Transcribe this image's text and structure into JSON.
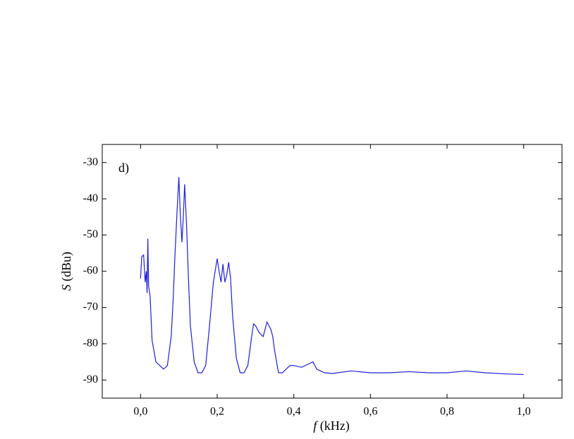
{
  "chart_data": {
    "type": "line",
    "annotation": "d)",
    "xlabel_symbol": "f",
    "xlabel_unit": " (kHz)",
    "ylabel_symbol": "S",
    "ylabel_unit": " (dBu)",
    "xlim": [
      -0.1,
      1.1
    ],
    "xticks": [
      {
        "value": 0,
        "label": "0,0"
      },
      {
        "value": 0.2,
        "label": "0,2"
      },
      {
        "value": 0.4,
        "label": "0,4"
      },
      {
        "value": 0.6,
        "label": "0,6"
      },
      {
        "value": 0.8,
        "label": "0,8"
      },
      {
        "value": 1.0,
        "label": "1,0"
      }
    ],
    "ylim": [
      -95,
      -25
    ],
    "yticks": [
      -90,
      -80,
      -70,
      -60,
      -50,
      -40,
      -30
    ],
    "series": [
      {
        "color": "#1f1fd6",
        "x": [
          0.0,
          0.003,
          0.008,
          0.012,
          0.015,
          0.017,
          0.019,
          0.021,
          0.025,
          0.03,
          0.035,
          0.04,
          0.05,
          0.06,
          0.07,
          0.08,
          0.085,
          0.09,
          0.095,
          0.1,
          0.104,
          0.108,
          0.112,
          0.115,
          0.12,
          0.125,
          0.13,
          0.14,
          0.15,
          0.16,
          0.17,
          0.18,
          0.19,
          0.2,
          0.205,
          0.21,
          0.215,
          0.22,
          0.225,
          0.23,
          0.235,
          0.24,
          0.25,
          0.26,
          0.27,
          0.28,
          0.29,
          0.295,
          0.3,
          0.31,
          0.32,
          0.33,
          0.34,
          0.345,
          0.35,
          0.36,
          0.37,
          0.38,
          0.39,
          0.4,
          0.42,
          0.44,
          0.45,
          0.46,
          0.48,
          0.5,
          0.55,
          0.6,
          0.65,
          0.7,
          0.75,
          0.8,
          0.85,
          0.9,
          0.95,
          1.0
        ],
        "values": [
          -62,
          -56,
          -55.5,
          -63,
          -60,
          -66,
          -51,
          -64,
          -67,
          -79,
          -82,
          -85,
          -86,
          -87,
          -86,
          -78,
          -68,
          -55,
          -44,
          -34,
          -45,
          -52,
          -44,
          -36,
          -47,
          -62,
          -75,
          -85,
          -88,
          -88,
          -86,
          -75,
          -63,
          -56.5,
          -60,
          -63,
          -58,
          -63,
          -61,
          -57.5,
          -62,
          -72,
          -84,
          -88,
          -88,
          -86,
          -78,
          -74.5,
          -75,
          -77,
          -78,
          -74,
          -76,
          -78,
          -82,
          -88,
          -88,
          -87,
          -86,
          -86,
          -86.5,
          -85.5,
          -85,
          -87,
          -88,
          -88.2,
          -87.5,
          -88,
          -88,
          -87.7,
          -88,
          -88,
          -87.5,
          -88,
          -88.3,
          -88.5
        ]
      }
    ]
  }
}
